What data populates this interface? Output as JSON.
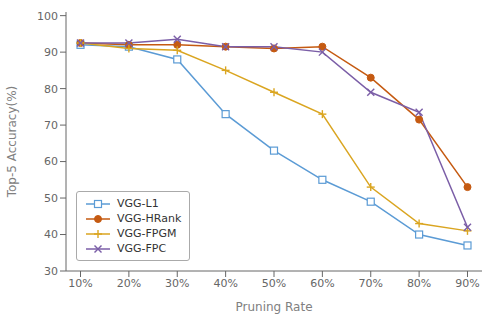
{
  "chart_data": {
    "type": "line",
    "x_label": "Pruning Rate",
    "y_label": "Top-5 Accuracy(%)",
    "x": [
      10,
      20,
      30,
      40,
      50,
      60,
      70,
      80,
      90
    ],
    "series": [
      {
        "name": "VGG-L1",
        "color": "#5b9bd5",
        "marker": "square",
        "values": [
          92,
          91.5,
          88,
          73,
          63,
          55,
          49,
          40,
          37
        ]
      },
      {
        "name": "VGG-HRank",
        "color": "#c55a11",
        "marker": "circle",
        "values": [
          92.5,
          92,
          92,
          91.5,
          91,
          91.5,
          83,
          71.5,
          53
        ]
      },
      {
        "name": "VGG-FPGM",
        "color": "#daa520",
        "marker": "plus",
        "values": [
          92.5,
          91,
          90.5,
          85,
          79,
          73,
          53,
          43,
          41
        ]
      },
      {
        "name": "VGG-FPC",
        "color": "#7b5ea7",
        "marker": "x",
        "values": [
          92.5,
          92.5,
          93.5,
          91.5,
          91.5,
          90,
          79,
          73.5,
          42
        ]
      }
    ],
    "xlim": [
      7,
      93
    ],
    "xticks": [
      {
        "value": 10,
        "label": "10%"
      },
      {
        "value": 20,
        "label": "20%"
      },
      {
        "value": 30,
        "label": "30%"
      },
      {
        "value": 40,
        "label": "40%"
      },
      {
        "value": 50,
        "label": "50%"
      },
      {
        "value": 60,
        "label": "60%"
      },
      {
        "value": 70,
        "label": "70%"
      },
      {
        "value": 80,
        "label": "80%"
      },
      {
        "value": 90,
        "label": "90%"
      }
    ],
    "ylim": [
      30,
      101
    ],
    "yticks": [
      30,
      40,
      50,
      60,
      70,
      80,
      90,
      100
    ],
    "grid": false,
    "legend": "lower left"
  }
}
